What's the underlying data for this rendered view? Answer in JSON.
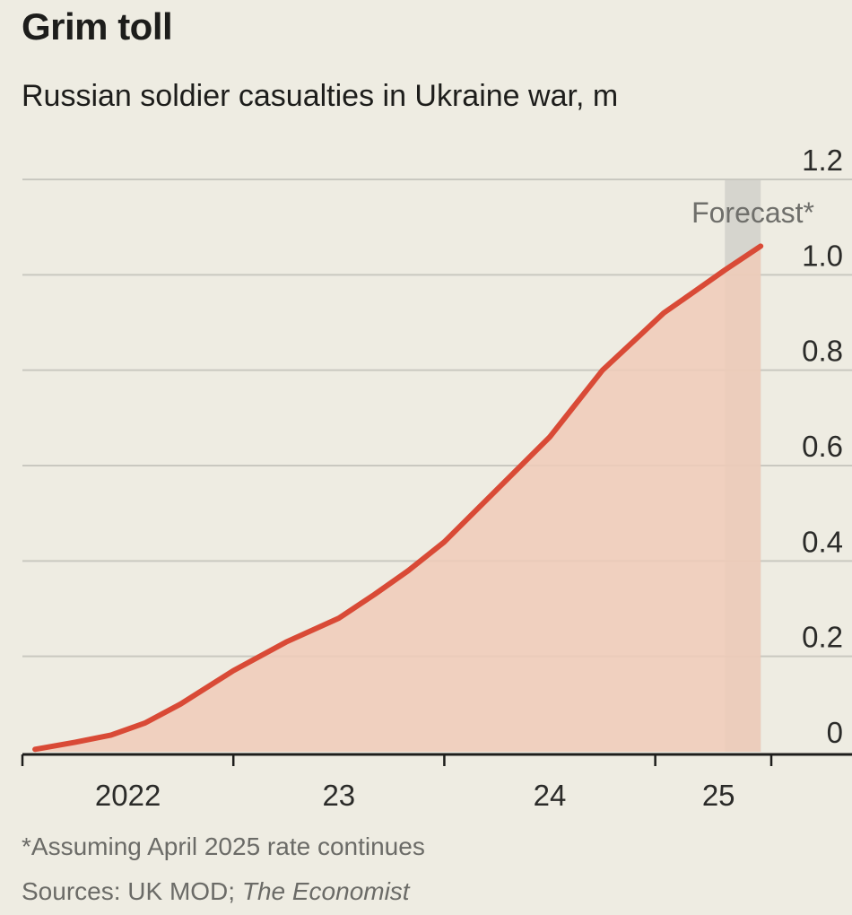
{
  "chart_data": {
    "type": "area",
    "title": "Grim toll",
    "subtitle": "Russian soldier casualties in Ukraine war, m",
    "ylim": [
      0,
      1.2
    ],
    "yticks": [
      {
        "value": 0,
        "label": "0"
      },
      {
        "value": 0.2,
        "label": "0.2"
      },
      {
        "value": 0.4,
        "label": "0.4"
      },
      {
        "value": 0.6,
        "label": "0.6"
      },
      {
        "value": 0.8,
        "label": "0.8"
      },
      {
        "value": 1.0,
        "label": "1.0"
      },
      {
        "value": 1.2,
        "label": "1.2"
      }
    ],
    "xlim": [
      2022.0,
      2025.55
    ],
    "xticks": [
      2022,
      2023,
      2024,
      2025
    ],
    "xlabels": [
      {
        "label": "2022",
        "pos": 2022.5
      },
      {
        "label": "23",
        "pos": 2023.5
      },
      {
        "label": "24",
        "pos": 2024.5
      },
      {
        "label": "25",
        "pos": 2025.3
      }
    ],
    "series": [
      {
        "name": "Russian soldier casualties",
        "color": "#d94a36",
        "fill": "#f0cbb8",
        "x": [
          2022.06,
          2022.25,
          2022.42,
          2022.58,
          2022.75,
          2023.0,
          2023.25,
          2023.5,
          2023.67,
          2023.83,
          2024.0,
          2024.25,
          2024.5,
          2024.75,
          2024.92,
          2025.04,
          2025.17,
          2025.33,
          2025.5
        ],
        "values": [
          0.005,
          0.02,
          0.035,
          0.06,
          0.1,
          0.17,
          0.23,
          0.28,
          0.33,
          0.38,
          0.44,
          0.55,
          0.66,
          0.8,
          0.87,
          0.92,
          0.96,
          1.01,
          1.06
        ]
      }
    ],
    "forecast": {
      "label": "Forecast*",
      "start": 2025.33,
      "end": 2025.5
    }
  },
  "colors": {
    "background": "#eeece2",
    "line": "#d94a36",
    "area": "#f0cbb8",
    "forecast_band": "#d6d5ce",
    "grid": "#c9c8c0"
  },
  "footnote": "*Assuming April 2025 rate continues",
  "source_prefix": "Sources: UK MOD; ",
  "source_italic": "The Economist"
}
